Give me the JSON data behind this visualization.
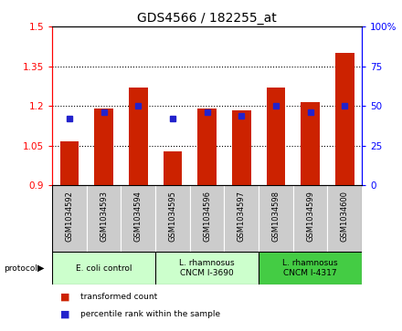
{
  "title": "GDS4566 / 182255_at",
  "categories": [
    "GSM1034592",
    "GSM1034593",
    "GSM1034594",
    "GSM1034595",
    "GSM1034596",
    "GSM1034597",
    "GSM1034598",
    "GSM1034599",
    "GSM1034600"
  ],
  "transformed_counts": [
    1.065,
    1.19,
    1.27,
    1.03,
    1.19,
    1.185,
    1.27,
    1.215,
    1.4
  ],
  "percentile_ranks": [
    42,
    46,
    50,
    42,
    46,
    44,
    50,
    46,
    50
  ],
  "ylim_left": [
    0.9,
    1.5
  ],
  "ylim_right": [
    0,
    100
  ],
  "yticks_left": [
    0.9,
    1.05,
    1.2,
    1.35,
    1.5
  ],
  "yticks_right": [
    0,
    25,
    50,
    75,
    100
  ],
  "ytick_labels_left": [
    "0.9",
    "1.05",
    "1.2",
    "1.35",
    "1.5"
  ],
  "ytick_labels_right": [
    "0",
    "25",
    "50",
    "75",
    "100%"
  ],
  "bar_color": "#cc2200",
  "dot_color": "#2222cc",
  "bar_width": 0.55,
  "base_value": 0.9,
  "group_spans": [
    [
      0,
      2,
      "E. coli control",
      "#ccffcc"
    ],
    [
      3,
      5,
      "L. rhamnosus\nCNCM I-3690",
      "#ccffcc"
    ],
    [
      6,
      8,
      "L. rhamnosus\nCNCM I-4317",
      "#44cc44"
    ]
  ],
  "xtick_bg_color": "#cccccc",
  "legend_red": "transformed count",
  "legend_blue": "percentile rank within the sample"
}
